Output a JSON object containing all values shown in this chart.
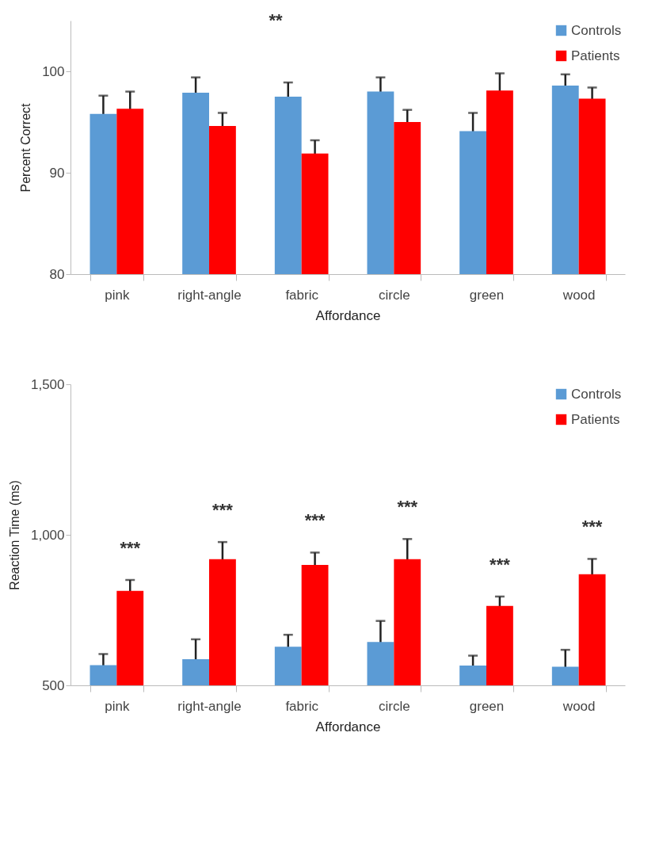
{
  "chart_data": [
    {
      "type": "bar",
      "xlabel": "Affordance",
      "ylabel": "Percent Correct",
      "categories": [
        "pink",
        "right-angle",
        "fabric",
        "circle",
        "green",
        "wood"
      ],
      "series": [
        {
          "name": "Controls",
          "color": "#5b9bd5",
          "values": [
            95.8,
            97.9,
            97.5,
            98.0,
            94.1,
            98.6
          ],
          "errors": [
            1.8,
            1.5,
            1.4,
            1.4,
            1.8,
            1.1
          ]
        },
        {
          "name": "Patients",
          "color": "#ff0000",
          "values": [
            96.3,
            94.6,
            91.9,
            95.0,
            98.1,
            97.3
          ],
          "errors": [
            1.7,
            1.3,
            1.3,
            1.2,
            1.7,
            1.1
          ]
        }
      ],
      "ylim": [
        80,
        105
      ],
      "yticks": [
        80,
        90,
        100
      ],
      "grid": false,
      "legend": "top right",
      "annotations": [
        "**"
      ]
    },
    {
      "type": "bar",
      "xlabel": "Affordance",
      "ylabel": "Reaction Time (ms)",
      "categories": [
        "pink",
        "right-angle",
        "fabric",
        "circle",
        "green",
        "wood"
      ],
      "series": [
        {
          "name": "Controls",
          "color": "#5b9bd5",
          "values": [
            567,
            587,
            628,
            644,
            566,
            562
          ],
          "errors": [
            37,
            66,
            40,
            70,
            33,
            56
          ]
        },
        {
          "name": "Patients",
          "color": "#ff0000",
          "values": [
            814,
            919,
            900,
            919,
            764,
            869
          ],
          "errors": [
            36,
            57,
            41,
            67,
            31,
            51
          ]
        }
      ],
      "ylim": [
        500,
        1500
      ],
      "yticks": [
        500,
        {
          "value": 1000,
          "label": "1,000"
        },
        {
          "value": 1500,
          "label": "1,500"
        }
      ],
      "grid": false,
      "legend": "top right",
      "annotations": [
        "***",
        "***",
        "***",
        "***",
        "***",
        "***"
      ]
    }
  ]
}
